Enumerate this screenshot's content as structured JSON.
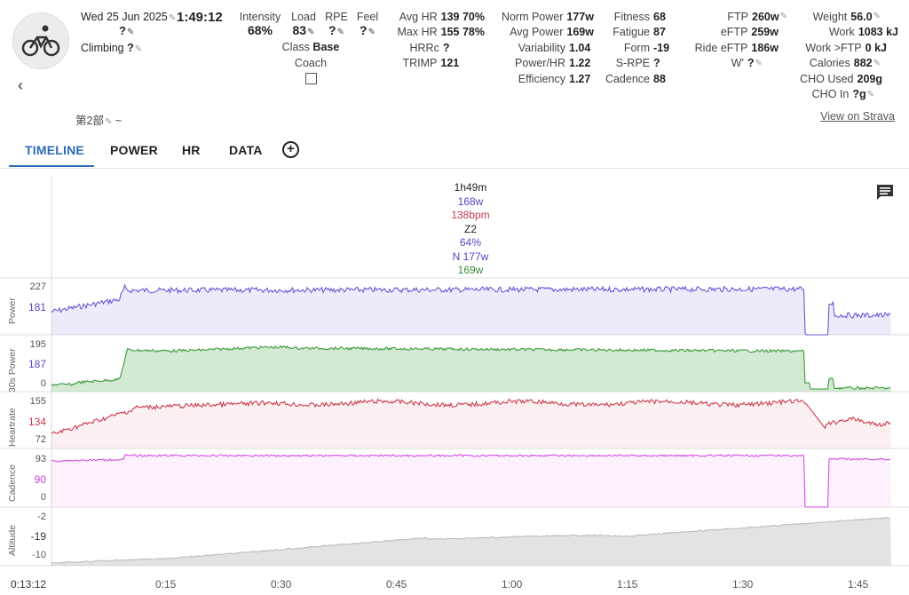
{
  "activity": {
    "date": "Wed 25 Jun 2025",
    "duration": "1:49:12",
    "name": "?",
    "climbing_label": "Climbing",
    "climbing_value": "?",
    "note": "第2部",
    "note_suffix": "~",
    "strava_link": "View on Strava"
  },
  "mini": {
    "intensity_label": "Intensity",
    "intensity_value": "68%",
    "load_label": "Load",
    "load_value": "83",
    "rpe_label": "RPE",
    "rpe_value": "?",
    "feel_label": "Feel",
    "feel_value": "?",
    "class_label": "Class",
    "class_value": "Base",
    "coach_label": "Coach"
  },
  "stats_hr": [
    {
      "label": "Avg HR",
      "value": "139 70%"
    },
    {
      "label": "Max HR",
      "value": "155 78%"
    },
    {
      "label": "HRRc",
      "value": "?"
    },
    {
      "label": "TRIMP",
      "value": "121"
    }
  ],
  "stats_power": [
    {
      "label": "Norm Power",
      "value": "177w"
    },
    {
      "label": "Avg Power",
      "value": "169w"
    },
    {
      "label": "Variability",
      "value": "1.04"
    },
    {
      "label": "Power/HR",
      "value": "1.22"
    },
    {
      "label": "Efficiency",
      "value": "1.27"
    }
  ],
  "stats_fitness": [
    {
      "label": "Fitness",
      "value": "68"
    },
    {
      "label": "Fatigue",
      "value": "87"
    },
    {
      "label": "Form",
      "value": "-19"
    },
    {
      "label": "S-RPE",
      "value": "?"
    },
    {
      "label": "Cadence",
      "value": "88"
    }
  ],
  "stats_ftp": [
    {
      "label": "FTP",
      "value": "260w"
    },
    {
      "label": "eFTP",
      "value": "259w"
    },
    {
      "label": "Ride eFTP",
      "value": "186w"
    },
    {
      "label": "W'",
      "value": "?"
    }
  ],
  "stats_body": [
    {
      "label": "Weight",
      "value": "56.0"
    },
    {
      "label": "Work",
      "value": "1083 kJ"
    },
    {
      "label": "Work >FTP",
      "value": "0 kJ"
    },
    {
      "label": "Calories",
      "value": "882"
    },
    {
      "label": "CHO Used",
      "value": "209g"
    },
    {
      "label": "CHO In",
      "value": "?g"
    }
  ],
  "tabs": [
    "TIMELINE",
    "POWER",
    "HR",
    "DATA"
  ],
  "summary": {
    "duration": "1h49m",
    "power": "168w",
    "hr": "138bpm",
    "zone": "Z2",
    "intensity": "64%",
    "norm_power": "N 177w",
    "avg_30s": "169w"
  },
  "colors": {
    "power": "#6f56d6",
    "power30": "#3a9a3a",
    "hr": "#cc3b4e",
    "cadence": "#d34de0",
    "altitude": "#c8c8c8",
    "accent": "#2e6ab8"
  },
  "chart_data": {
    "type": "line",
    "x_ticks": [
      "0:15",
      "0:30",
      "0:45",
      "1:00",
      "1:15",
      "1:30",
      "1:45"
    ],
    "x_start": "0:13:12",
    "panels": [
      {
        "name": "Power",
        "ticks": [
          "227",
          "181"
        ],
        "current": "181"
      },
      {
        "name": "30s Power",
        "ticks": [
          "195",
          "187",
          "0"
        ],
        "current": "187"
      },
      {
        "name": "Heartrate",
        "ticks": [
          "155",
          "134",
          "72"
        ],
        "current": "134"
      },
      {
        "name": "Cadence",
        "ticks": [
          "93",
          "90",
          "0"
        ],
        "current": "90"
      },
      {
        "name": "Altitude",
        "ticks": [
          "-2",
          "-19",
          "-10"
        ],
        "current": "-19"
      }
    ]
  }
}
